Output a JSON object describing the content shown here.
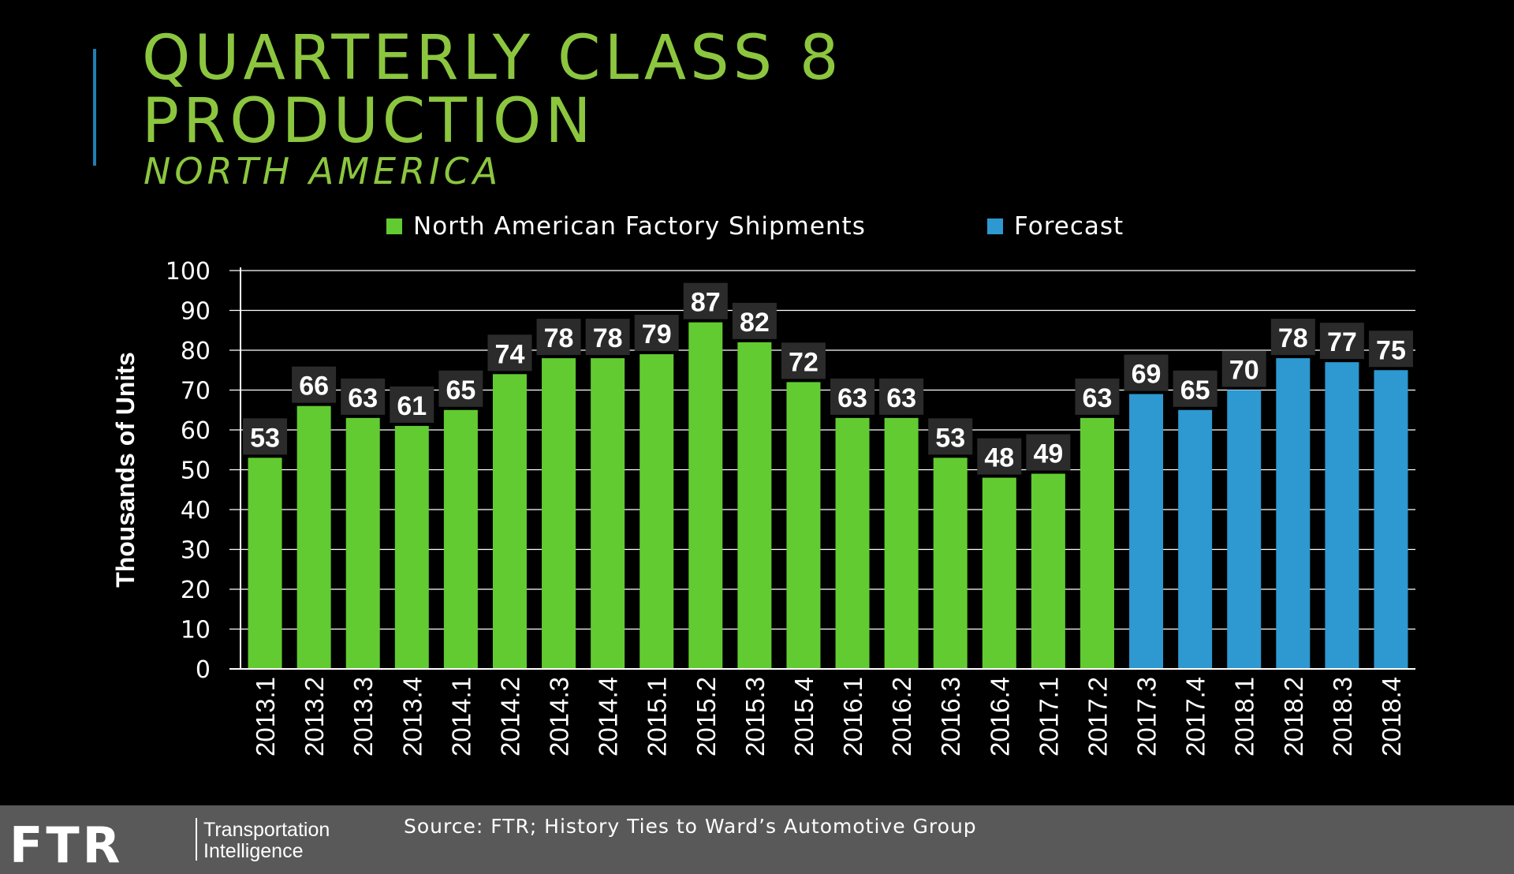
{
  "header": {
    "title_line1": "QUARTERLY CLASS 8",
    "title_line2": "PRODUCTION",
    "subtitle": "NORTH AMERICA"
  },
  "footer": {
    "logo_text": "FTR",
    "tagline_line1": "Transportation",
    "tagline_line2": "Intelligence",
    "source": "Source: FTR; History Ties to Ward’s Automotive Group"
  },
  "colors": {
    "title": "#8cc63f",
    "accent_line": "#1f7fb4",
    "history_bar": "#62cb31",
    "forecast_bar": "#2e98d0",
    "label_box": "#2b2b2b",
    "grid": "#ffffff",
    "footer_bg": "#595959"
  },
  "chart_data": {
    "type": "bar",
    "title": "QUARTERLY CLASS 8 PRODUCTION",
    "subtitle": "NORTH AMERICA",
    "ylabel": "Thousands  of  Units",
    "xlabel": "",
    "ylim": [
      0,
      100
    ],
    "yticks": [
      0,
      10,
      20,
      30,
      40,
      50,
      60,
      70,
      80,
      90,
      100
    ],
    "grid": true,
    "legend_position": "top-center",
    "categories": [
      "2013.1",
      "2013.2",
      "2013.3",
      "2013.4",
      "2014.1",
      "2014.2",
      "2014.3",
      "2014.4",
      "2015.1",
      "2015.2",
      "2015.3",
      "2015.4",
      "2016.1",
      "2016.2",
      "2016.3",
      "2016.4",
      "2017.1",
      "2017.2",
      "2017.3",
      "2017.4",
      "2018.1",
      "2018.2",
      "2018.3",
      "2018.4"
    ],
    "series": [
      {
        "name": "North American Factory Shipments",
        "color": "#62cb31",
        "values": [
          53,
          66,
          63,
          61,
          65,
          74,
          78,
          78,
          79,
          87,
          82,
          72,
          63,
          63,
          53,
          48,
          49,
          63,
          null,
          null,
          null,
          null,
          null,
          null
        ]
      },
      {
        "name": "Forecast",
        "color": "#2e98d0",
        "values": [
          null,
          null,
          null,
          null,
          null,
          null,
          null,
          null,
          null,
          null,
          null,
          null,
          null,
          null,
          null,
          null,
          null,
          null,
          69,
          65,
          70,
          78,
          77,
          75
        ]
      }
    ]
  }
}
